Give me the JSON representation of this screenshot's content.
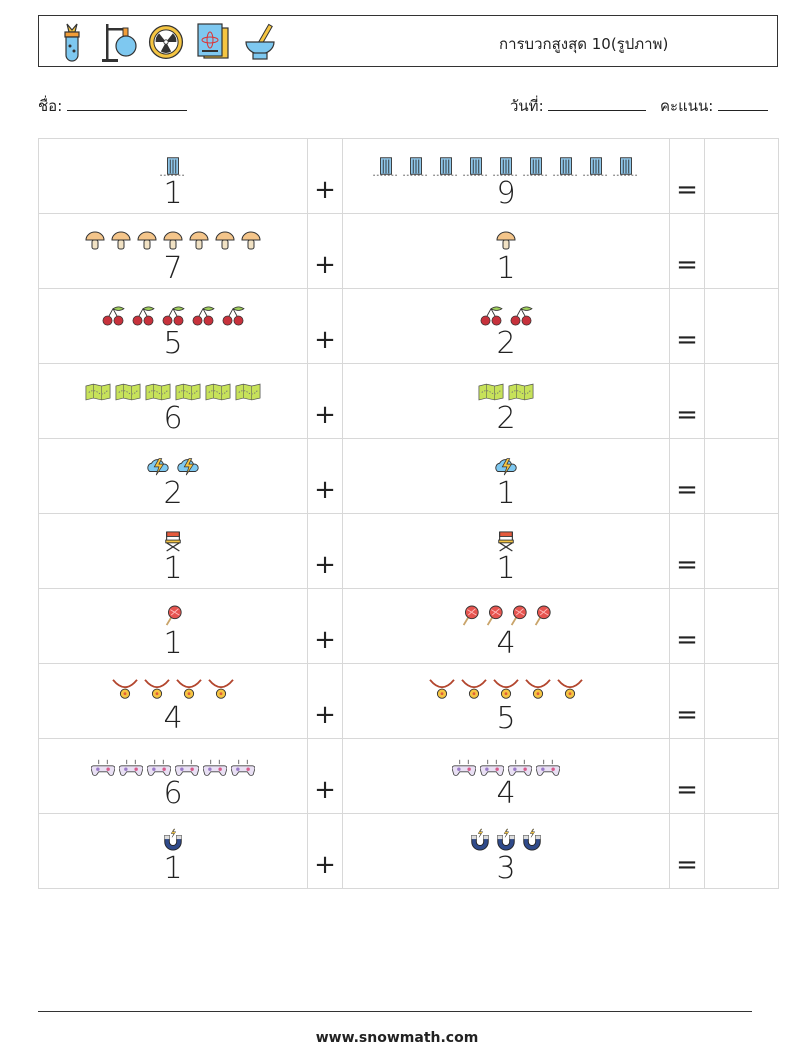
{
  "header": {
    "title": "การบวกสูงสุด 10(รูปภาพ)",
    "icons": [
      "flask-torch-icon",
      "retort-stand-icon",
      "radiation-icon",
      "science-book-icon",
      "mortar-pestle-icon"
    ]
  },
  "fields": {
    "name_label": "ชื่อ:",
    "date_label": "วันที่:",
    "score_label": "คะแนน:"
  },
  "operators": {
    "plus": "+",
    "equals": "="
  },
  "problems": [
    {
      "a": "1",
      "b": "9",
      "icon": "building-icon"
    },
    {
      "a": "7",
      "b": "1",
      "icon": "mushroom-icon"
    },
    {
      "a": "5",
      "b": "2",
      "icon": "cherry-icon"
    },
    {
      "a": "6",
      "b": "2",
      "icon": "map-icon"
    },
    {
      "a": "2",
      "b": "1",
      "icon": "storm-cloud-icon"
    },
    {
      "a": "1",
      "b": "1",
      "icon": "director-chair-icon"
    },
    {
      "a": "1",
      "b": "4",
      "icon": "lollipop-icon"
    },
    {
      "a": "4",
      "b": "5",
      "icon": "necklace-icon"
    },
    {
      "a": "6",
      "b": "4",
      "icon": "gamepad-icon"
    },
    {
      "a": "1",
      "b": "3",
      "icon": "magnet-icon"
    }
  ],
  "footer": {
    "url": "www.snowmath.com"
  }
}
